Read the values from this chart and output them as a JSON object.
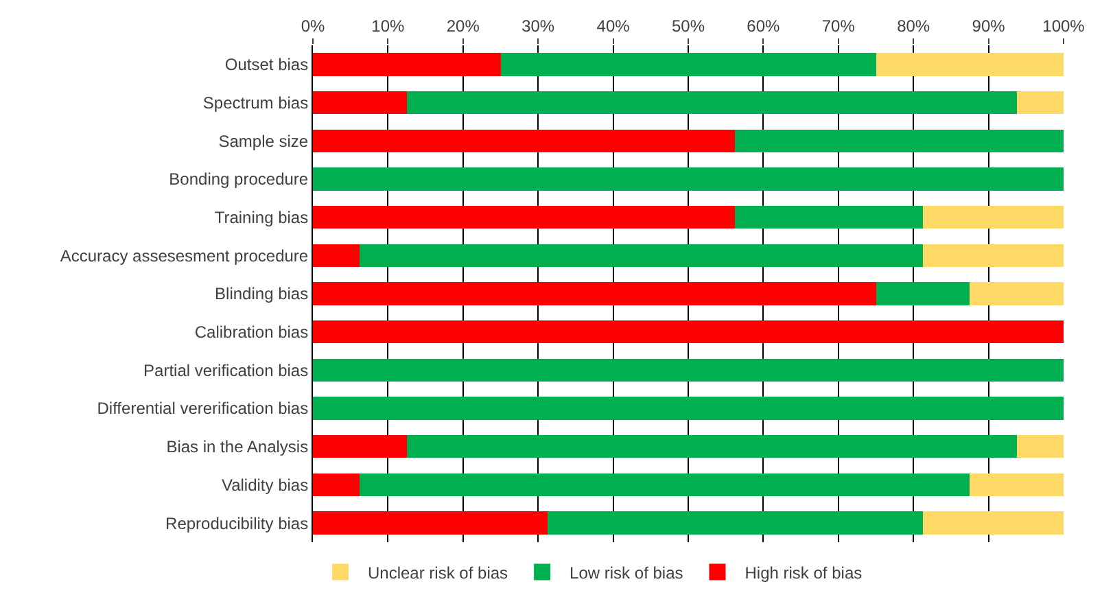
{
  "chart_data": {
    "type": "bar",
    "orientation": "horizontal",
    "stacked": true,
    "grid": "x",
    "legend": "bottom",
    "categories": [
      "Outset bias",
      "Spectrum bias",
      "Sample size",
      "Bonding procedure",
      "Training bias",
      "Accuracy assesesment procedure",
      "Blinding bias",
      "Calibration bias",
      "Partial verification bias",
      "Differential vererification bias",
      "Bias in the Analysis",
      "Validity bias",
      "Reproducibility bias"
    ],
    "series": [
      {
        "name": "High risk of bias",
        "color": "#ff0000",
        "values": [
          25,
          12.5,
          56.25,
          0,
          56.25,
          6.25,
          75,
          100,
          0,
          0,
          12.5,
          6.25,
          31.25
        ]
      },
      {
        "name": "Low risk of bias",
        "color": "#00b050",
        "values": [
          50,
          81.25,
          43.75,
          100,
          25,
          75,
          12.5,
          0,
          100,
          100,
          81.25,
          81.25,
          50
        ]
      },
      {
        "name": "Unclear risk of bias",
        "color": "#ffd966",
        "values": [
          25,
          6.25,
          0,
          0,
          18.75,
          18.75,
          12.5,
          0,
          0,
          0,
          6.25,
          12.5,
          18.75
        ]
      }
    ],
    "xlim": [
      0,
      100
    ],
    "xticks": [
      {
        "value": 0,
        "label": "0%"
      },
      {
        "value": 10,
        "label": "10%"
      },
      {
        "value": 20,
        "label": "20%"
      },
      {
        "value": 30,
        "label": "30%"
      },
      {
        "value": 40,
        "label": "40%"
      },
      {
        "value": 50,
        "label": "50%"
      },
      {
        "value": 60,
        "label": "60%"
      },
      {
        "value": 70,
        "label": "70%"
      },
      {
        "value": 80,
        "label": "80%"
      },
      {
        "value": 90,
        "label": "90%"
      },
      {
        "value": 100,
        "label": "100%"
      }
    ]
  }
}
